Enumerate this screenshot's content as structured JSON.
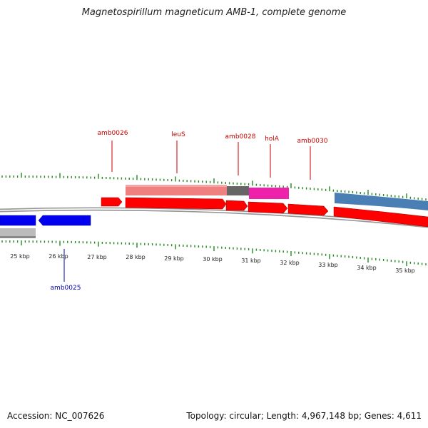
{
  "title": "Magnetospirillum magneticum AMB-1, complete genome",
  "footer": {
    "accession": "Accession: NC_007626",
    "summary": "Topology: circular; Length: 4,967,148 bp; Genes: 4,611"
  },
  "colors": {
    "forward_gene": "#ff0000",
    "reverse_gene": "#0000ee",
    "forward_label": "#cc0000",
    "reverse_label": "#0000aa",
    "tick": "#228822",
    "backbone": "#888888",
    "cds_pink": "#ee7a7a",
    "cds_dark": "#666666",
    "cds_magenta": "#ee22aa",
    "cds_steelblue": "#4a7fb5",
    "cds_gray": "#bbbbbb"
  },
  "scale_labels": [
    "25 kbp",
    "26 kbp",
    "27 kbp",
    "28 kbp",
    "29 kbp",
    "30 kbp",
    "31 kbp",
    "32 kbp",
    "33 kbp",
    "34 kbp",
    "35 kbp"
  ],
  "forward_gene_labels": [
    "amb0026",
    "leuS",
    "amb0028",
    "holA",
    "amb0030"
  ],
  "reverse_gene_labels": [
    "amb0025"
  ]
}
